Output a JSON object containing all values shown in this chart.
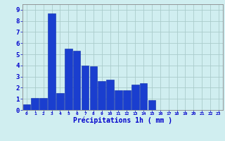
{
  "categories": [
    0,
    1,
    2,
    3,
    4,
    5,
    6,
    7,
    8,
    9,
    10,
    11,
    12,
    13,
    14,
    15,
    16,
    17,
    18,
    19,
    20,
    21,
    22,
    23
  ],
  "values": [
    0.5,
    1.1,
    1.1,
    8.7,
    1.5,
    5.5,
    5.3,
    4.0,
    3.9,
    2.6,
    2.7,
    1.8,
    1.8,
    2.3,
    2.4,
    0.9,
    0,
    0,
    0,
    0,
    0,
    0,
    0,
    0
  ],
  "bar_color": "#1a3ecf",
  "bar_edge_color": "#0a2aaa",
  "background_color": "#d0eef0",
  "grid_color": "#aacccc",
  "grid_color_major": "#b0cccc",
  "xlabel": "Précipitations 1h ( mm )",
  "xlabel_color": "#0000cc",
  "tick_color": "#0000cc",
  "ylim": [
    0,
    9.5
  ],
  "yticks": [
    0,
    1,
    2,
    3,
    4,
    5,
    6,
    7,
    8,
    9
  ],
  "figsize": [
    3.2,
    2.0
  ],
  "dpi": 100
}
